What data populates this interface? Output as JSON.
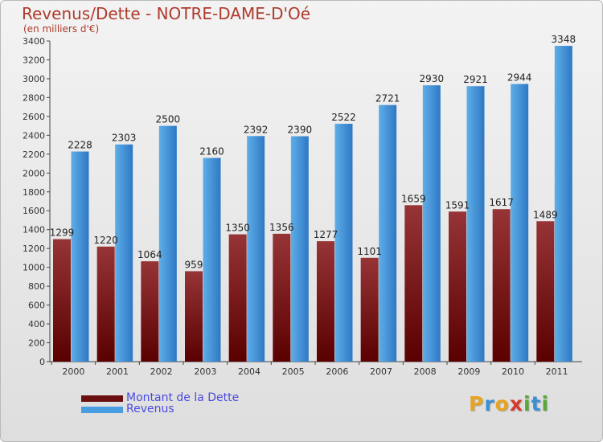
{
  "title": "Revenus/Dette - NOTRE-DAME-D'Oé",
  "subtitle": "(en milliers d'€)",
  "chart_data": {
    "type": "bar",
    "title": "Revenus/Dette - NOTRE-DAME-D'Oé",
    "subtitle": "(en milliers d'€)",
    "categories": [
      "2000",
      "2001",
      "2002",
      "2003",
      "2004",
      "2005",
      "2006",
      "2007",
      "2008",
      "2009",
      "2010",
      "2011"
    ],
    "series": [
      {
        "name": "Montant de la Dette",
        "color": "#7b1f1f",
        "values": [
          1299,
          1220,
          1064,
          959,
          1350,
          1356,
          1277,
          1101,
          1659,
          1591,
          1617,
          1489
        ],
        "labels": [
          "1299",
          "1220",
          "1064",
          "959",
          "1350",
          "1356",
          "1277",
          "1101",
          "1659",
          "1591",
          "1617",
          "1489"
        ]
      },
      {
        "name": "Revenus",
        "color": "#4a9de0",
        "values": [
          2228,
          2303,
          2500,
          2160,
          2392,
          2390,
          2522,
          2721,
          2930,
          2921,
          2944,
          3348
        ],
        "labels": [
          "2228",
          "2303",
          "2500",
          "2160",
          "2392",
          "2390",
          "2522",
          "2721",
          "2930",
          "2921",
          "2944",
          "3348"
        ]
      }
    ],
    "ylim": [
      0,
      3400
    ],
    "yticks": [
      0,
      200,
      400,
      600,
      800,
      1000,
      1200,
      1400,
      1600,
      1800,
      2000,
      2200,
      2400,
      2600,
      2800,
      3000,
      3200,
      3400
    ],
    "grid": false,
    "legend_position": "bottom-left"
  },
  "legend": [
    {
      "label": "Montant de la Dette",
      "color": "#6a0f0f"
    },
    {
      "label": "Revenus",
      "color": "#4a9de0"
    }
  ],
  "logo": {
    "text": "Proxiti",
    "letters": [
      {
        "ch": "P",
        "color": "#e8a320"
      },
      {
        "ch": "r",
        "color": "#3b8fd4"
      },
      {
        "ch": "o",
        "color": "#e8a320"
      },
      {
        "ch": "x",
        "color": "#d63b2b"
      },
      {
        "ch": "i",
        "color": "#58a83a"
      },
      {
        "ch": "t",
        "color": "#3b8fd4"
      },
      {
        "ch": "i",
        "color": "#58a83a"
      }
    ]
  }
}
